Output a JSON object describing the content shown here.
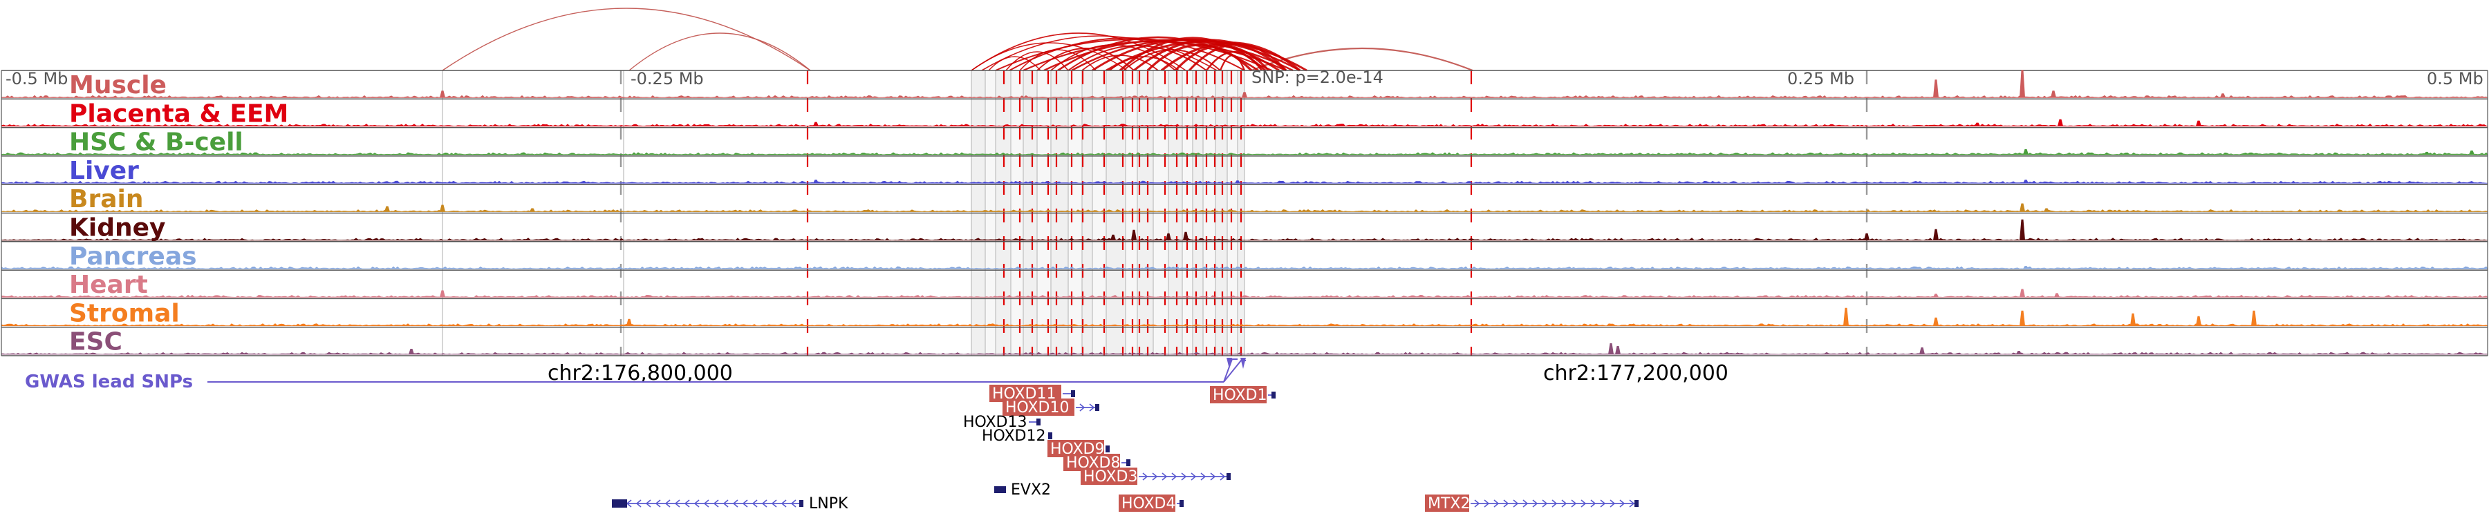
{
  "axis": {
    "ticks": [
      {
        "label": "-0.5 Mb",
        "pos": -0.5
      },
      {
        "label": "-0.25 Mb",
        "pos": -0.25
      },
      {
        "label": "0.25 Mb",
        "pos": 0.25
      },
      {
        "label": "0.5 Mb",
        "pos": 0.5
      }
    ],
    "range_mb": [
      -0.5,
      0.5
    ]
  },
  "snp": {
    "label": "SNP: p=2.0e-14"
  },
  "coordinates": {
    "left": "chr2:176,800,000",
    "right": "chr2:177,200,000"
  },
  "gwas_label": "GWAS lead SNPs",
  "tracks": [
    {
      "name": "Muscle",
      "color": "#cd5c5c"
    },
    {
      "name": "Placenta & EEM",
      "color": "#e00010"
    },
    {
      "name": "HSC & B-cell",
      "color": "#4a9e3c"
    },
    {
      "name": "Liver",
      "color": "#4a4ad4"
    },
    {
      "name": "Brain",
      "color": "#c8881e"
    },
    {
      "name": "Kidney",
      "color": "#5a0a0a"
    },
    {
      "name": "Pancreas",
      "color": "#85a6dd"
    },
    {
      "name": "Heart",
      "color": "#d97a88"
    },
    {
      "name": "Stromal",
      "color": "#f47e20"
    },
    {
      "name": "ESC",
      "color": "#8b4f78"
    }
  ],
  "genes": [
    {
      "name": "HOXD11",
      "highlight": true
    },
    {
      "name": "HOXD10",
      "highlight": true
    },
    {
      "name": "HOXD13",
      "highlight": false
    },
    {
      "name": "HOXD12",
      "highlight": false
    },
    {
      "name": "HOXD9",
      "highlight": true
    },
    {
      "name": "HOXD8",
      "highlight": true
    },
    {
      "name": "HOXD3",
      "highlight": true
    },
    {
      "name": "EVX2",
      "highlight": false
    },
    {
      "name": "LNPK",
      "highlight": false
    },
    {
      "name": "HOXD4",
      "highlight": true
    },
    {
      "name": "HOXD1",
      "highlight": true
    },
    {
      "name": "MTX2",
      "highlight": true
    }
  ],
  "colors": {
    "arc": "#cc0000",
    "arc_light": "#c0504a",
    "dash_red": "#e00000",
    "dash_gray": "#999999",
    "gwas": "#6a5acd",
    "gene_box": "#c8574f",
    "gene_body": "#1e1e6e",
    "gene_line": "#5a5ad0",
    "track_border": "#555555"
  }
}
